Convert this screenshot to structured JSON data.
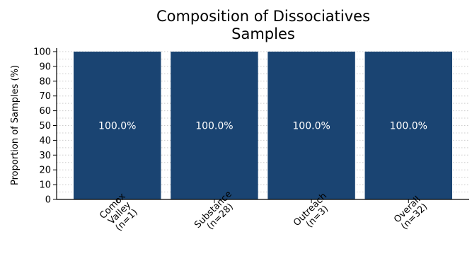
{
  "chart_data": {
    "type": "bar",
    "title_lines": [
      "Composition of Dissociatives",
      "Samples"
    ],
    "ylabel": "Proportion of Samples (%)",
    "xlabel": "",
    "ylim": [
      0,
      100
    ],
    "yticks": [
      "0",
      "10",
      "20",
      "30",
      "40",
      "50",
      "60",
      "70",
      "80",
      "90",
      "100"
    ],
    "categories": [
      {
        "lines": [
          "Comox",
          "Valley",
          "(n=1)"
        ]
      },
      {
        "lines": [
          "Substance",
          "(n=28)"
        ]
      },
      {
        "lines": [
          "Outreach",
          "(n=3)"
        ]
      },
      {
        "lines": [
          "Overall",
          "(n=32)"
        ]
      }
    ],
    "values": [
      100,
      100,
      100,
      100
    ],
    "data_labels": [
      "100.0%",
      "100.0%",
      "100.0%",
      "100.0%"
    ],
    "grid": "horizontal dotted",
    "colors": {
      "bar": "#1a4472",
      "grid": "#cccccc",
      "axis": "#000000"
    }
  }
}
